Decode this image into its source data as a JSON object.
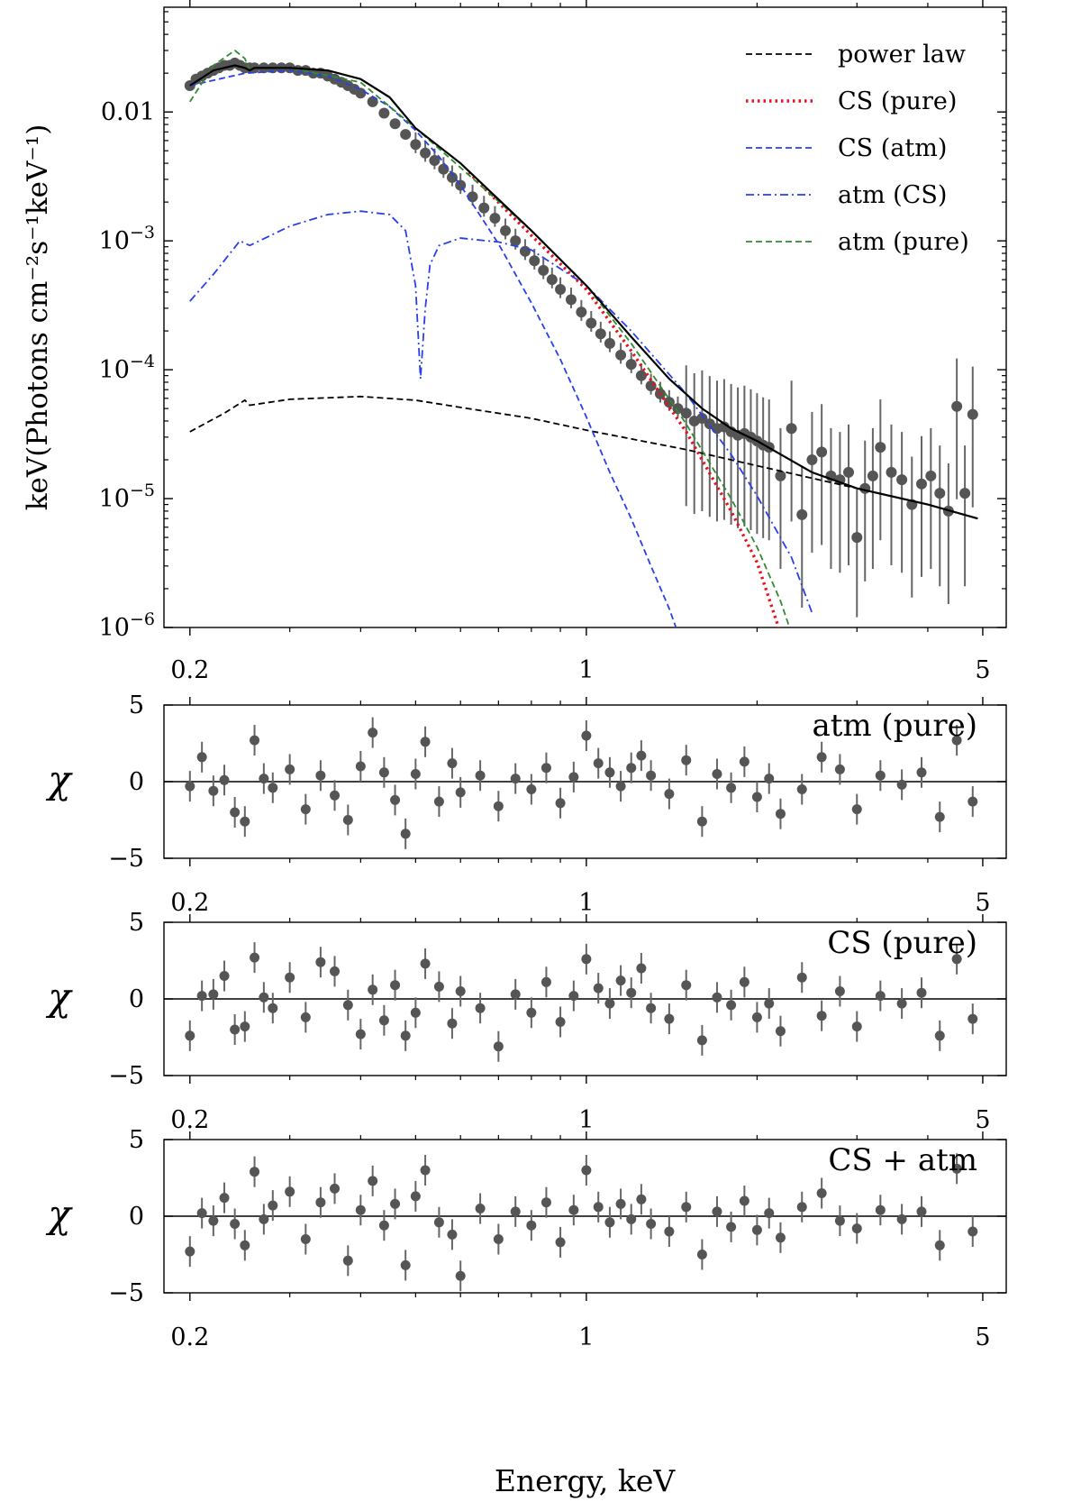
{
  "chart_data": [
    {
      "type": "line",
      "panel": "spectrum",
      "ylabel": "keV(Photons cm⁻²s⁻¹keV⁻¹)",
      "xscale": "log",
      "yscale": "log",
      "xlim": [
        0.18,
        5.5
      ],
      "ylim": [
        1e-06,
        0.065
      ],
      "x_ticks": [
        0.2,
        1,
        5
      ],
      "x_tick_labels": [
        "0.2",
        "1",
        "5"
      ],
      "y_ticks": [
        0.01,
        0.001,
        0.0001,
        1e-05,
        1e-06
      ],
      "y_tick_labels": [
        {
          "text": "0.01",
          "base": "0.01",
          "exp": ""
        },
        {
          "text": "10⁻³",
          "base": "10",
          "exp": "−3"
        },
        {
          "text": "10⁻⁴",
          "base": "10",
          "exp": "−4"
        },
        {
          "text": "10⁻⁵",
          "base": "10",
          "exp": "−5"
        },
        {
          "text": "10⁻⁶",
          "base": "10",
          "exp": "−6"
        }
      ],
      "legend": {
        "position": "top-right",
        "entries": [
          {
            "label": "power law",
            "color": "#000000",
            "style": "dashed"
          },
          {
            "label": "CS (pure)",
            "color": "#e8111d",
            "style": "dotted"
          },
          {
            "label": "CS (atm)",
            "color": "#2840ea",
            "style": "dashed"
          },
          {
            "label": "atm (CS)",
            "color": "#2840ea",
            "style": "dashdot"
          },
          {
            "label": "atm (pure)",
            "color": "#2e8b2e",
            "style": "dashed"
          }
        ]
      },
      "series": [
        {
          "name": "power law",
          "color": "#000000",
          "style": "dashed",
          "x": [
            0.2,
            0.23,
            0.25,
            0.255,
            0.3,
            0.4,
            0.5,
            0.6,
            0.8,
            1.0,
            1.5,
            2.0,
            3.0,
            4.0,
            4.9
          ],
          "y": [
            3.3e-05,
            4.6e-05,
            5.8e-05,
            5.3e-05,
            5.9e-05,
            6.2e-05,
            5.8e-05,
            5.1e-05,
            4.2e-05,
            3.4e-05,
            2.4e-05,
            1.8e-05,
            1.2e-05,
            9e-06,
            7e-06
          ]
        },
        {
          "name": "CS (pure)",
          "color": "#e8111d",
          "style": "dotted",
          "x": [
            0.62,
            0.8,
            1.0,
            1.2,
            1.5,
            1.8,
            2.0,
            2.2
          ],
          "y": [
            0.0034,
            0.0011,
            0.00042,
            0.00014,
            3.3e-05,
            8e-06,
            3.2e-06,
            9e-07
          ]
        },
        {
          "name": "CS (atm)",
          "color": "#2840ea",
          "style": "dashed",
          "x": [
            0.2,
            0.25,
            0.3,
            0.35,
            0.4,
            0.45,
            0.5,
            0.55,
            0.6,
            0.7,
            0.8,
            0.9,
            1.0,
            1.1,
            1.2,
            1.3,
            1.4,
            1.5
          ],
          "y": [
            0.016,
            0.02,
            0.021,
            0.019,
            0.015,
            0.011,
            0.0072,
            0.0045,
            0.0027,
            0.00095,
            0.00033,
            0.00012,
            4.3e-05,
            1.6e-05,
            7e-06,
            3e-06,
            1.4e-06,
            6e-07
          ]
        },
        {
          "name": "atm (CS)",
          "color": "#2840ea",
          "style": "dashdot",
          "x": [
            0.2,
            0.22,
            0.245,
            0.255,
            0.3,
            0.35,
            0.4,
            0.45,
            0.48,
            0.5,
            0.51,
            0.52,
            0.53,
            0.55,
            0.6,
            0.7,
            0.8,
            1.0,
            1.2,
            1.5,
            1.8,
            2.0,
            2.3,
            2.5
          ],
          "y": [
            0.00034,
            0.00055,
            0.001,
            0.00092,
            0.0013,
            0.0016,
            0.0017,
            0.0016,
            0.0012,
            0.00045,
            8.5e-05,
            0.0003,
            0.00065,
            0.00092,
            0.00105,
            0.00098,
            0.00085,
            0.00045,
            0.0002,
            6.5e-05,
            2.2e-05,
            1.05e-05,
            3.5e-06,
            1.3e-06
          ]
        },
        {
          "name": "atm (pure)",
          "color": "#2e8b2e",
          "style": "dashed",
          "x": [
            0.2,
            0.22,
            0.24,
            0.25,
            0.255,
            0.26,
            0.3,
            0.4,
            0.5,
            0.6,
            0.8,
            1.0,
            1.2,
            1.5,
            1.8,
            2.0,
            2.2,
            2.3
          ],
          "y": [
            0.012,
            0.023,
            0.03,
            0.026,
            0.021,
            0.022,
            0.022,
            0.017,
            0.0075,
            0.0037,
            0.0012,
            0.00045,
            0.00016,
            3.8e-05,
            1e-05,
            4.2e-06,
            1.6e-06,
            9e-07
          ]
        },
        {
          "name": "total model",
          "color": "#000000",
          "style": "solid",
          "x": [
            0.2,
            0.22,
            0.24,
            0.25,
            0.255,
            0.26,
            0.3,
            0.35,
            0.4,
            0.45,
            0.5,
            0.6,
            0.7,
            0.8,
            1.0,
            1.2,
            1.4,
            1.6,
            1.8,
            2.0,
            2.5,
            3.0,
            4.0,
            4.9
          ],
          "y": [
            0.016,
            0.021,
            0.023,
            0.022,
            0.021,
            0.022,
            0.022,
            0.021,
            0.018,
            0.013,
            0.0075,
            0.004,
            0.0021,
            0.0012,
            0.00045,
            0.00018,
            8.5e-05,
            5e-05,
            3.5e-05,
            2.8e-05,
            1.6e-05,
            1.2e-05,
            9e-06,
            7e-06
          ]
        },
        {
          "name": "data",
          "type": "scatter",
          "color": "#555555",
          "x": [
            0.2,
            0.205,
            0.21,
            0.215,
            0.22,
            0.225,
            0.23,
            0.235,
            0.24,
            0.245,
            0.25,
            0.255,
            0.26,
            0.27,
            0.28,
            0.29,
            0.3,
            0.31,
            0.32,
            0.33,
            0.34,
            0.35,
            0.36,
            0.37,
            0.38,
            0.39,
            0.4,
            0.42,
            0.44,
            0.46,
            0.48,
            0.5,
            0.52,
            0.54,
            0.56,
            0.58,
            0.6,
            0.63,
            0.66,
            0.69,
            0.72,
            0.75,
            0.78,
            0.81,
            0.84,
            0.87,
            0.9,
            0.94,
            0.98,
            1.02,
            1.06,
            1.1,
            1.15,
            1.2,
            1.25,
            1.3,
            1.35,
            1.4,
            1.45,
            1.5,
            1.55,
            1.6,
            1.65,
            1.7,
            1.75,
            1.8,
            1.85,
            1.9,
            1.95,
            2.0,
            2.05,
            2.1,
            2.2,
            2.3,
            2.4,
            2.5,
            2.6,
            2.7,
            2.8,
            2.9,
            3.0,
            3.1,
            3.2,
            3.3,
            3.45,
            3.6,
            3.75,
            3.9,
            4.05,
            4.2,
            4.35,
            4.5,
            4.65,
            4.8
          ],
          "y": [
            0.016,
            0.018,
            0.019,
            0.02,
            0.021,
            0.022,
            0.023,
            0.023,
            0.024,
            0.023,
            0.022,
            0.022,
            0.022,
            0.022,
            0.022,
            0.022,
            0.022,
            0.021,
            0.021,
            0.02,
            0.02,
            0.019,
            0.018,
            0.017,
            0.016,
            0.015,
            0.014,
            0.012,
            0.0098,
            0.0081,
            0.0067,
            0.0056,
            0.0048,
            0.0042,
            0.0036,
            0.0031,
            0.0027,
            0.0022,
            0.0018,
            0.0015,
            0.0012,
            0.001,
            0.00083,
            0.0007,
            0.00059,
            0.0005,
            0.00042,
            0.00035,
            0.00028,
            0.00023,
            0.00019,
            0.00016,
            0.00013,
            0.00011,
            9e-05,
            7.5e-05,
            6.5e-05,
            5.6e-05,
            5e-05,
            4.6e-05,
            4e-05,
            4.2e-05,
            3.8e-05,
            3.5e-05,
            3.6e-05,
            3.3e-05,
            3.1e-05,
            3.2e-05,
            3e-05,
            2.8e-05,
            2.6e-05,
            2.5e-05,
            1.5e-05,
            3.5e-05,
            7.5e-06,
            2e-05,
            2.3e-05,
            1.5e-05,
            1.4e-05,
            1.6e-05,
            5e-06,
            1.2e-05,
            1.5e-05,
            2.5e-05,
            1.6e-05,
            1.4e-05,
            9e-06,
            1.3e-05,
            1.5e-05,
            1.1e-05,
            8e-06,
            5.2e-05,
            1.1e-05,
            4.5e-05
          ]
        }
      ]
    },
    {
      "type": "scatter",
      "panel": "residuals",
      "annotation": "atm (pure)",
      "ylabel": "χ",
      "xscale": "log",
      "xlim": [
        0.18,
        5.5
      ],
      "ylim": [
        -5,
        5
      ],
      "y_ticks": [
        5,
        0,
        -5
      ],
      "y_tick_labels": [
        "5",
        "0",
        "−5"
      ],
      "x_ticks": [
        0.2,
        1,
        5
      ],
      "x_tick_labels": [
        "0.2",
        "1",
        "5"
      ],
      "x": [
        0.2,
        0.21,
        0.22,
        0.23,
        0.24,
        0.25,
        0.26,
        0.27,
        0.28,
        0.3,
        0.32,
        0.34,
        0.36,
        0.38,
        0.4,
        0.42,
        0.44,
        0.46,
        0.48,
        0.5,
        0.52,
        0.55,
        0.58,
        0.6,
        0.65,
        0.7,
        0.75,
        0.8,
        0.85,
        0.9,
        0.95,
        1.0,
        1.05,
        1.1,
        1.15,
        1.2,
        1.25,
        1.3,
        1.4,
        1.5,
        1.6,
        1.7,
        1.8,
        1.9,
        2.0,
        2.1,
        2.2,
        2.4,
        2.6,
        2.8,
        3.0,
        3.3,
        3.6,
        3.9,
        4.2,
        4.5,
        4.8
      ],
      "y": [
        -0.3,
        1.6,
        -0.6,
        0.1,
        -2.0,
        -2.6,
        2.7,
        0.2,
        -0.4,
        0.8,
        -1.8,
        0.4,
        -0.9,
        -2.5,
        1.0,
        3.2,
        0.6,
        -1.2,
        -3.4,
        0.5,
        2.6,
        -1.3,
        1.2,
        -0.7,
        0.4,
        -1.6,
        0.2,
        -0.5,
        0.9,
        -1.4,
        0.3,
        3.0,
        1.2,
        0.6,
        -0.3,
        0.9,
        1.7,
        0.4,
        -0.8,
        1.4,
        -2.6,
        0.5,
        -0.4,
        1.3,
        -1.0,
        0.2,
        -2.1,
        -0.5,
        1.6,
        0.8,
        -1.8,
        0.4,
        -0.2,
        0.6,
        -2.3,
        2.7,
        -1.3
      ]
    },
    {
      "type": "scatter",
      "panel": "residuals",
      "annotation": "CS (pure)",
      "ylabel": "χ",
      "xscale": "log",
      "xlim": [
        0.18,
        5.5
      ],
      "ylim": [
        -5,
        5
      ],
      "y_ticks": [
        5,
        0,
        -5
      ],
      "y_tick_labels": [
        "5",
        "0",
        "−5"
      ],
      "x_ticks": [
        0.2,
        1,
        5
      ],
      "x_tick_labels": [
        "0.2",
        "1",
        "5"
      ],
      "x": [
        0.2,
        0.21,
        0.22,
        0.23,
        0.24,
        0.25,
        0.26,
        0.27,
        0.28,
        0.3,
        0.32,
        0.34,
        0.36,
        0.38,
        0.4,
        0.42,
        0.44,
        0.46,
        0.48,
        0.5,
        0.52,
        0.55,
        0.58,
        0.6,
        0.65,
        0.7,
        0.75,
        0.8,
        0.85,
        0.9,
        0.95,
        1.0,
        1.05,
        1.1,
        1.15,
        1.2,
        1.25,
        1.3,
        1.4,
        1.5,
        1.6,
        1.7,
        1.8,
        1.9,
        2.0,
        2.1,
        2.2,
        2.4,
        2.6,
        2.8,
        3.0,
        3.3,
        3.6,
        3.9,
        4.2,
        4.5,
        4.8
      ],
      "y": [
        -2.4,
        0.2,
        0.3,
        1.5,
        -2.0,
        -1.8,
        2.7,
        0.1,
        -0.6,
        1.4,
        -1.2,
        2.4,
        1.8,
        -0.4,
        -2.3,
        0.6,
        -1.4,
        0.9,
        -2.4,
        -0.9,
        2.3,
        0.8,
        -1.6,
        0.5,
        -0.6,
        -3.1,
        0.3,
        -0.9,
        1.1,
        -1.5,
        0.2,
        2.6,
        0.7,
        -0.3,
        1.2,
        0.4,
        2.0,
        -0.6,
        -1.3,
        0.9,
        -2.7,
        0.1,
        -0.4,
        1.1,
        -1.2,
        -0.3,
        -2.1,
        1.4,
        -1.1,
        0.5,
        -1.8,
        0.2,
        -0.3,
        0.4,
        -2.4,
        2.6,
        -1.3
      ]
    },
    {
      "type": "scatter",
      "panel": "residuals",
      "annotation": "CS + atm",
      "ylabel": "χ",
      "xscale": "log",
      "xlim": [
        0.18,
        5.5
      ],
      "ylim": [
        -5,
        5
      ],
      "xlabel": "Energy, keV",
      "y_ticks": [
        5,
        0,
        -5
      ],
      "y_tick_labels": [
        "5",
        "0",
        "−5"
      ],
      "x_ticks": [
        0.2,
        1,
        5
      ],
      "x_tick_labels": [
        "0.2",
        "1",
        "5"
      ],
      "x": [
        0.2,
        0.21,
        0.22,
        0.23,
        0.24,
        0.25,
        0.26,
        0.27,
        0.28,
        0.3,
        0.32,
        0.34,
        0.36,
        0.38,
        0.4,
        0.42,
        0.44,
        0.46,
        0.48,
        0.5,
        0.52,
        0.55,
        0.58,
        0.6,
        0.65,
        0.7,
        0.75,
        0.8,
        0.85,
        0.9,
        0.95,
        1.0,
        1.05,
        1.1,
        1.15,
        1.2,
        1.25,
        1.3,
        1.4,
        1.5,
        1.6,
        1.7,
        1.8,
        1.9,
        2.0,
        2.1,
        2.2,
        2.4,
        2.6,
        2.8,
        3.0,
        3.3,
        3.6,
        3.9,
        4.2,
        4.5,
        4.8
      ],
      "y": [
        -2.3,
        0.2,
        -0.3,
        1.2,
        -0.5,
        -1.9,
        2.9,
        -0.2,
        0.7,
        1.6,
        -1.5,
        0.9,
        1.8,
        -2.9,
        0.4,
        2.3,
        -0.6,
        0.8,
        -3.2,
        1.3,
        3.0,
        -0.4,
        -1.2,
        -3.9,
        0.5,
        -1.5,
        0.3,
        -0.6,
        0.9,
        -1.7,
        0.4,
        3.0,
        0.6,
        -0.4,
        0.8,
        -0.2,
        1.1,
        -0.5,
        -1.0,
        0.6,
        -2.5,
        0.3,
        -0.7,
        1.0,
        -0.9,
        0.2,
        -1.4,
        0.6,
        1.5,
        -0.3,
        -0.8,
        0.4,
        -0.2,
        0.3,
        -1.9,
        3.1,
        -1.0
      ]
    }
  ]
}
